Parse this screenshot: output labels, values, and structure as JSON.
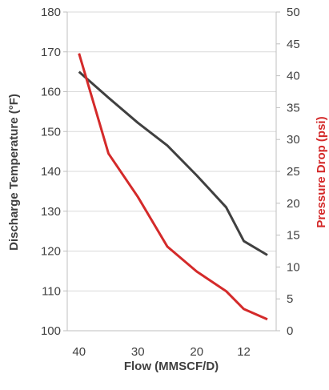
{
  "chart_data": {
    "type": "line",
    "xlabel": "Flow (MMSCF/D)",
    "ylabel_left": "Discharge Temperature (°F)",
    "ylabel_right": "Pressure Drop (psi)",
    "x_ticks": [
      "40",
      "30",
      "20",
      "12"
    ],
    "y_left_range": [
      100,
      180
    ],
    "y_left_ticks": [
      "100",
      "110",
      "120",
      "130",
      "140",
      "150",
      "160",
      "170",
      "180"
    ],
    "y_right_range": [
      0,
      50
    ],
    "y_right_ticks": [
      "0",
      "5",
      "10",
      "15",
      "20",
      "25",
      "30",
      "35",
      "40",
      "45",
      "50"
    ],
    "x_range": [
      42,
      6.5
    ],
    "grid": true,
    "series": [
      {
        "axis": "left",
        "color": "#404040",
        "points": [
          [
            40,
            165
          ],
          [
            35,
            158.5
          ],
          [
            30,
            152.2
          ],
          [
            25,
            146.5
          ],
          [
            20,
            139
          ],
          [
            15,
            131
          ],
          [
            12,
            122.5
          ],
          [
            8,
            119
          ]
        ]
      },
      {
        "axis": "right",
        "color": "#d42a2a",
        "points": [
          [
            40,
            43.5
          ],
          [
            35,
            27.8
          ],
          [
            30,
            21
          ],
          [
            25,
            13.2
          ],
          [
            20,
            9.3
          ],
          [
            15,
            6.2
          ],
          [
            12,
            3.4
          ],
          [
            8,
            1.8
          ]
        ]
      }
    ]
  }
}
